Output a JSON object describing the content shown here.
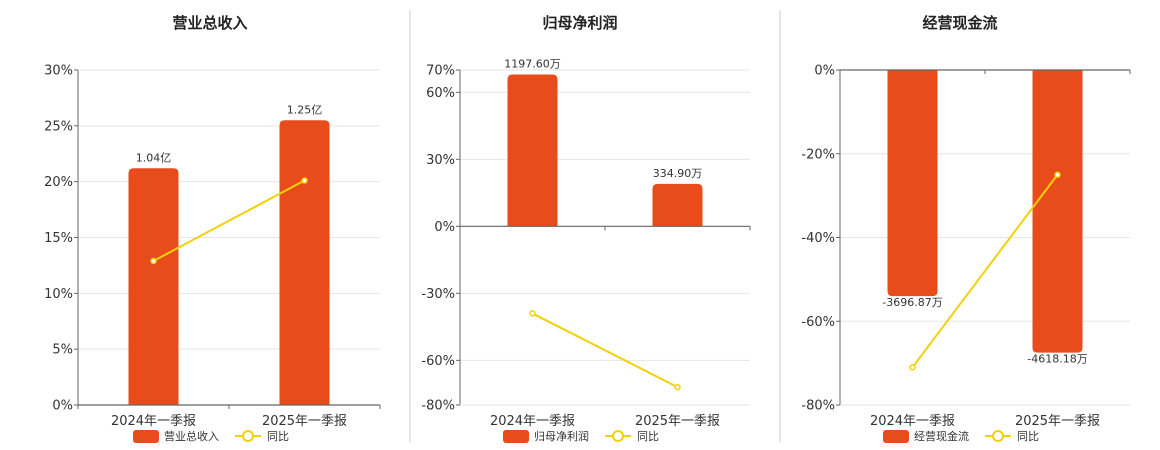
{
  "colors": {
    "bar": "#e84c1a",
    "line": "#f2d10a",
    "axis": "#666666",
    "grid": "#e6e6e6",
    "divider": "#cccccc"
  },
  "chart_data": [
    {
      "type": "bar",
      "title": "营业总收入",
      "categories": [
        "2024年一季报",
        "2025年一季报"
      ],
      "ylim": [
        0,
        30
      ],
      "yticks": [
        "0%",
        "5%",
        "10%",
        "15%",
        "20%",
        "25%",
        "30%"
      ],
      "series": [
        {
          "name": "营业总收入",
          "kind": "bar",
          "values": [
            21.2,
            25.5
          ],
          "labels": [
            "1.04亿",
            "1.25亿"
          ]
        },
        {
          "name": "同比",
          "kind": "line",
          "values": [
            12.9,
            20.1
          ]
        }
      ],
      "grid": true,
      "legend": "bottom-center"
    },
    {
      "type": "bar",
      "title": "归母净利润",
      "categories": [
        "2024年一季报",
        "2025年一季报"
      ],
      "ylim": [
        -80,
        70
      ],
      "yticks": [
        "-80%",
        "-60%",
        "-30%",
        "0%",
        "30%",
        "60%",
        "70%"
      ],
      "series": [
        {
          "name": "归母净利润",
          "kind": "bar",
          "values": [
            68,
            19
          ],
          "labels": [
            "1197.60万",
            "334.90万"
          ]
        },
        {
          "name": "同比",
          "kind": "line",
          "values": [
            -39,
            -72
          ]
        }
      ],
      "grid": true,
      "legend": "bottom-center"
    },
    {
      "type": "bar",
      "title": "经营现金流",
      "categories": [
        "2024年一季报",
        "2025年一季报"
      ],
      "ylim": [
        -80,
        0
      ],
      "yticks": [
        "-80%",
        "-60%",
        "-40%",
        "-20%",
        "0%"
      ],
      "series": [
        {
          "name": "经营现金流",
          "kind": "bar",
          "values": [
            -54,
            -67.5
          ],
          "labels": [
            "-3696.87万",
            "-4618.18万"
          ]
        },
        {
          "name": "同比",
          "kind": "line",
          "values": [
            -71,
            -25
          ]
        }
      ],
      "grid": true,
      "legend": "bottom-center"
    }
  ]
}
